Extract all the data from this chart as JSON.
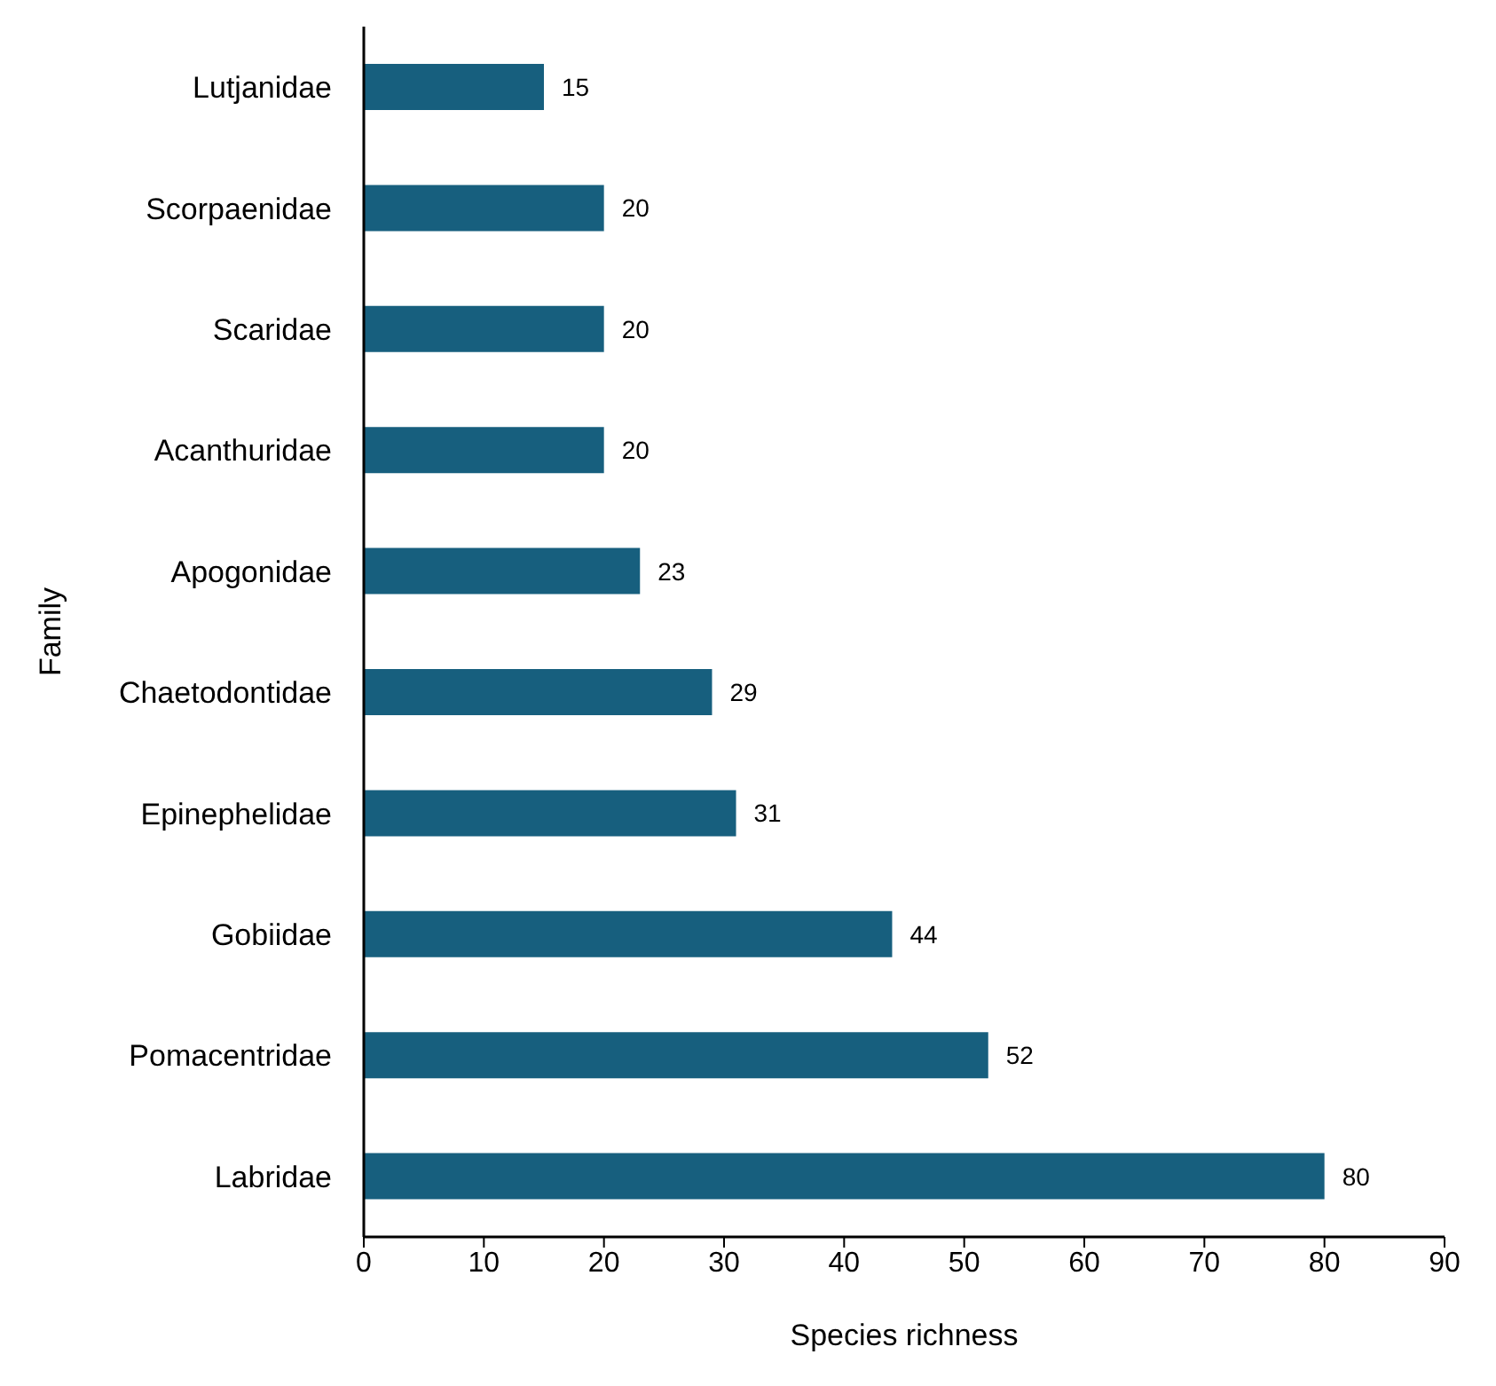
{
  "chart_data": {
    "type": "bar",
    "orientation": "horizontal",
    "xlabel": "Species richness",
    "ylabel": "Family",
    "categories": [
      "Lutjanidae",
      "Scorpaenidae",
      "Scaridae",
      "Acanthuridae",
      "Apogonidae",
      "Chaetodontidae",
      "Epinephelidae",
      "Gobiidae",
      "Pomacentridae",
      "Labridae"
    ],
    "values": [
      15,
      20,
      20,
      20,
      23,
      29,
      31,
      44,
      52,
      80
    ],
    "color": "#175f7e",
    "xlim": [
      0,
      90
    ],
    "xticks": [
      0,
      10,
      20,
      30,
      40,
      50,
      60,
      70,
      80,
      90
    ],
    "data_labels": true
  }
}
